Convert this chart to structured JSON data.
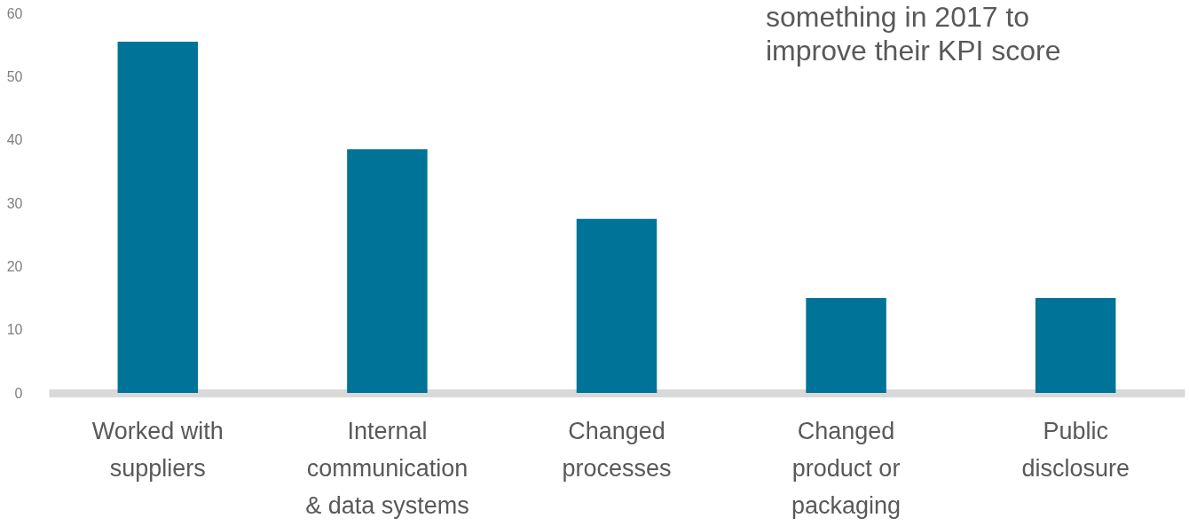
{
  "chart_data": {
    "type": "bar",
    "categories": [
      "Worked with\nsuppliers",
      "Internal\ncommunication\n& data systems",
      "Changed\nprocesses",
      "Changed\nproduct or\npackaging",
      "Public\ndisclosure"
    ],
    "values": [
      55.5,
      38.5,
      27.5,
      15,
      15
    ],
    "color": "#007398",
    "ylim": [
      0,
      60
    ],
    "yticks": [
      0,
      10,
      20,
      30,
      40,
      50,
      60
    ],
    "grid": false,
    "annotations": [
      "something in 2017 to\nimprove their KPI score"
    ]
  }
}
